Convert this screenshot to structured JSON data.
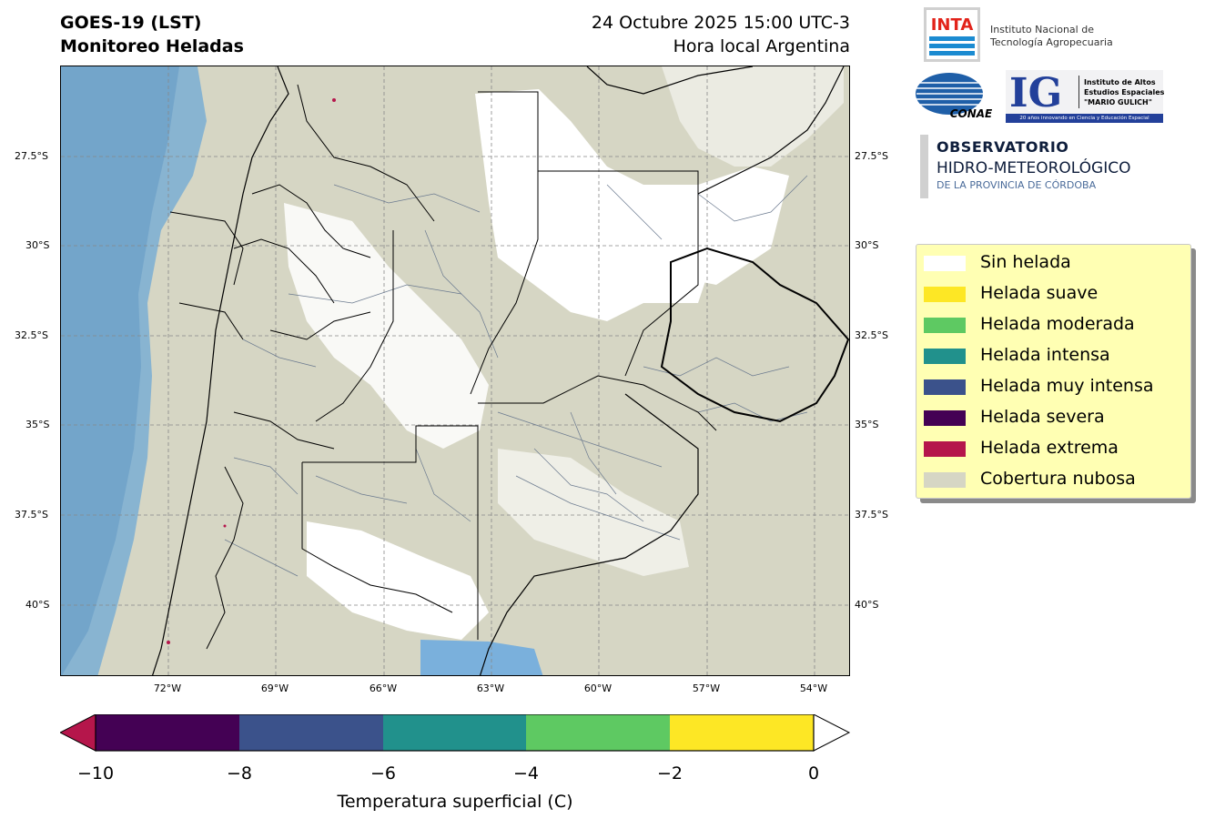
{
  "header": {
    "title_line1": "GOES-19 (LST)",
    "title_line2": "Monitoreo Heladas",
    "date_line1": "24 Octubre 2025 15:00 UTC-3",
    "date_line2": "Hora local Argentina"
  },
  "map": {
    "lat_ticks": [
      "27.5°S",
      "30°S",
      "32.5°S",
      "35°S",
      "37.5°S",
      "40°S"
    ],
    "lon_ticks": [
      "72°W",
      "69°W",
      "66°W",
      "63°W",
      "60°W",
      "57°W",
      "54°W"
    ],
    "lon_range": [
      -75,
      -53
    ],
    "lat_range": [
      -42,
      -25
    ],
    "grid": true
  },
  "logos": {
    "inta_abbr": "INTA",
    "inta_line1": "Instituto Nacional de",
    "inta_line2": "Tecnología Agropecuaria",
    "conae": "CONAE",
    "ig_abbr": "IG",
    "ig_line1": "Instituto de Altos",
    "ig_line2": "Estudios Espaciales",
    "ig_line3": "\"MARIO GULICH\"",
    "ig_footer": "20 años innovando en Ciencia y Educación Espacial",
    "obs_line1": "OBSERVATORIO",
    "obs_line2": "HIDRO-METEOROLÓGICO",
    "obs_line3": "DE LA PROVINCIA DE CÓRDOBA"
  },
  "legend": {
    "items": [
      {
        "label": "Sin helada",
        "color": "#ffffff"
      },
      {
        "label": "Helada suave",
        "color": "#fde725"
      },
      {
        "label": "Helada moderada",
        "color": "#5ec962"
      },
      {
        "label": "Helada intensa",
        "color": "#21918c"
      },
      {
        "label": "Helada muy intensa",
        "color": "#3b528b"
      },
      {
        "label": "Helada severa",
        "color": "#440154"
      },
      {
        "label": "Helada extrema",
        "color": "#b5164b"
      },
      {
        "label": "Cobertura nubosa",
        "color": "#d6d6c4"
      }
    ]
  },
  "colorbar": {
    "label": "Temperatura superficial (C)",
    "ticks": [
      "−10",
      "−8",
      "−6",
      "−4",
      "−2",
      "0"
    ],
    "segments": [
      "#440154",
      "#3b528b",
      "#21918c",
      "#5ec962",
      "#fde725"
    ],
    "under_color": "#b5164b",
    "over_color": "#ffffff"
  }
}
